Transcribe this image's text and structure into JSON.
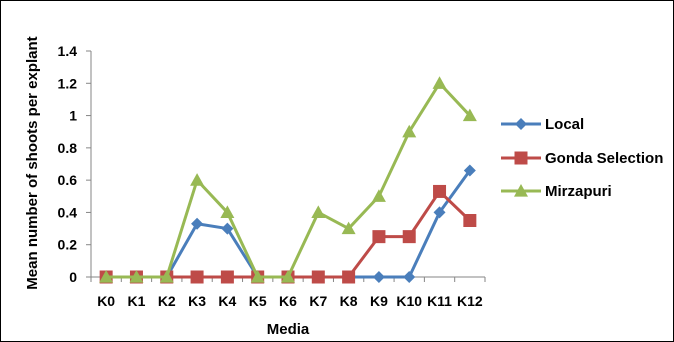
{
  "chart_data": {
    "type": "line",
    "xlabel": "Media",
    "ylabel": "Mean number of shoots per explant",
    "categories": [
      "K0",
      "K1",
      "K2",
      "K3",
      "K4",
      "K5",
      "K6",
      "K7",
      "K8",
      "K9",
      "K10",
      "K11",
      "K12"
    ],
    "ylim": [
      0,
      1.4
    ],
    "yticks": [
      "0",
      "0.2",
      "0.4",
      "0.6",
      "0.8",
      "1",
      "1.2",
      "1.4"
    ],
    "grid": false,
    "legend_position": "right",
    "series": [
      {
        "name": "Local",
        "color": "#4a7ebb",
        "marker": "diamond",
        "values": [
          0,
          0,
          0,
          0.33,
          0.3,
          0,
          0,
          0,
          0,
          0,
          0,
          0.4,
          0.66
        ]
      },
      {
        "name": "Gonda Selection",
        "color": "#be4b48",
        "marker": "square",
        "values": [
          0,
          0,
          0,
          0,
          0,
          0,
          0,
          0,
          0,
          0.25,
          0.25,
          0.53,
          0.35
        ]
      },
      {
        "name": "Mirzapuri",
        "color": "#98b954",
        "marker": "triangle",
        "values": [
          0,
          0,
          0,
          0.6,
          0.4,
          0,
          0,
          0.4,
          0.3,
          0.5,
          0.9,
          1.2,
          1.0
        ]
      }
    ]
  }
}
